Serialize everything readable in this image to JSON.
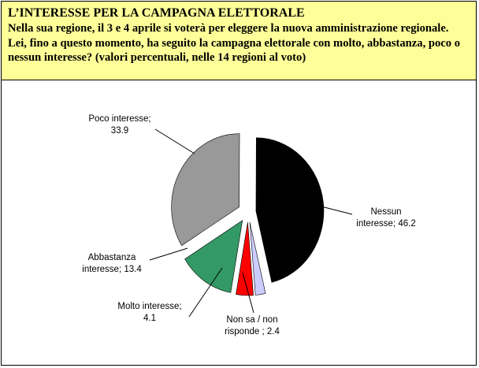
{
  "header": {
    "title": "L’INTERESSE PER LA CAMPAGNA ELETTORALE",
    "question": "Nella sua regione, il 3 e 4 aprile si voterà per eleggere la nuova amministrazione regionale. Lei, fino a questo momento, ha seguito la campagna elettorale con molto, abbastanza, poco o nessun interesse? (valori percentuali, nelle 14 regioni al voto)"
  },
  "chart_data": {
    "type": "pie",
    "slices": [
      {
        "label_lines": [
          "Nessun",
          "interesse; 46.2"
        ],
        "value": 46.2,
        "color": "#000000"
      },
      {
        "label_lines": [
          "Non sa / non",
          "risponde ; 2.4"
        ],
        "value": 2.4,
        "color": "#ccccff"
      },
      {
        "label_lines": [
          "Molto interesse;",
          "4.1"
        ],
        "value": 4.1,
        "color": "#ff0000"
      },
      {
        "label_lines": [
          "Abbastanza",
          "interesse; 13.4"
        ],
        "value": 13.4,
        "color": "#339966"
      },
      {
        "label_lines": [
          "Poco interesse;",
          "33.9"
        ],
        "value": 33.9,
        "color": "#999999"
      }
    ],
    "legend": "none",
    "exploded": true
  }
}
